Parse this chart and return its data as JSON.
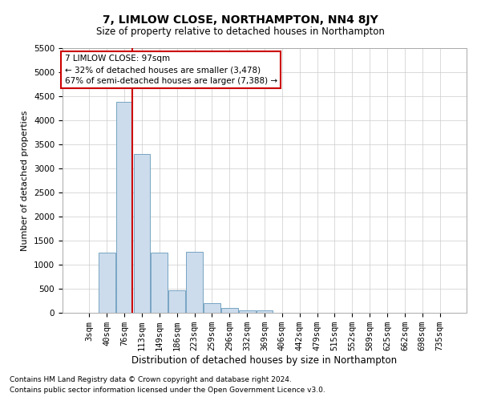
{
  "title": "7, LIMLOW CLOSE, NORTHAMPTON, NN4 8JY",
  "subtitle": "Size of property relative to detached houses in Northampton",
  "xlabel": "Distribution of detached houses by size in Northampton",
  "ylabel": "Number of detached properties",
  "footnote1": "Contains HM Land Registry data © Crown copyright and database right 2024.",
  "footnote2": "Contains public sector information licensed under the Open Government Licence v3.0.",
  "annotation_title": "7 LIMLOW CLOSE: 97sqm",
  "annotation_line1": "← 32% of detached houses are smaller (3,478)",
  "annotation_line2": "67% of semi-detached houses are larger (7,388) →",
  "bar_labels": [
    "3sqm",
    "40sqm",
    "76sqm",
    "113sqm",
    "149sqm",
    "186sqm",
    "223sqm",
    "259sqm",
    "296sqm",
    "332sqm",
    "369sqm",
    "406sqm",
    "442sqm",
    "479sqm",
    "515sqm",
    "552sqm",
    "589sqm",
    "625sqm",
    "662sqm",
    "698sqm",
    "735sqm"
  ],
  "bar_values": [
    0,
    1250,
    4380,
    3300,
    1250,
    470,
    1260,
    200,
    100,
    55,
    50,
    0,
    0,
    0,
    0,
    0,
    0,
    0,
    0,
    0,
    0
  ],
  "bar_color": "#ccdcec",
  "bar_edge_color": "#6699bb",
  "grid_color": "#cccccc",
  "vline_color": "#cc0000",
  "vline_pos": 2.45,
  "ylim_max": 5500,
  "yticks": [
    0,
    500,
    1000,
    1500,
    2000,
    2500,
    3000,
    3500,
    4000,
    4500,
    5000,
    5500
  ],
  "annotation_box_edgecolor": "#cc0000",
  "title_fontsize": 10,
  "subtitle_fontsize": 8.5,
  "ylabel_fontsize": 8,
  "xlabel_fontsize": 8.5,
  "tick_fontsize": 7.5,
  "footnote_fontsize": 6.5,
  "figsize": [
    6.0,
    5.0
  ],
  "dpi": 100
}
